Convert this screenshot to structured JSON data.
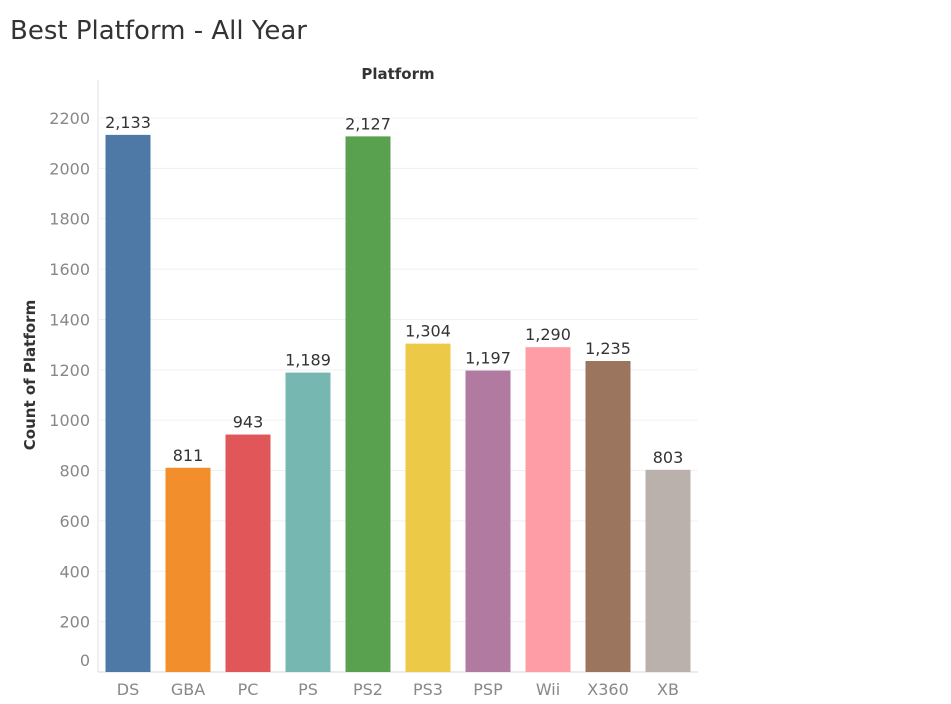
{
  "page": {
    "title": "Best Platform - All Year"
  },
  "chart_data": {
    "type": "bar",
    "title": "Best Platform - All Year",
    "xlabel": "Platform",
    "ylabel": "Count of Platform",
    "x_title_position": "top",
    "categories": [
      "DS",
      "GBA",
      "PC",
      "PS",
      "PS2",
      "PS3",
      "PSP",
      "Wii",
      "X360",
      "XB"
    ],
    "values": [
      2133,
      811,
      943,
      1189,
      2127,
      1304,
      1197,
      1290,
      1235,
      803
    ],
    "value_labels": [
      "2,133",
      "811",
      "943",
      "1,189",
      "2,127",
      "1,304",
      "1,197",
      "1,290",
      "1,235",
      "803"
    ],
    "colors": [
      "#4e79a7",
      "#f28e2b",
      "#e15759",
      "#76b7b2",
      "#59a14f",
      "#edc948",
      "#b07aa1",
      "#ff9da7",
      "#9c755f",
      "#bab0ac"
    ],
    "yticks": [
      0,
      200,
      400,
      600,
      800,
      1000,
      1200,
      1400,
      1600,
      1800,
      2000,
      2200
    ],
    "ylim": [
      0,
      2200
    ],
    "grid": true,
    "legend": "none"
  }
}
